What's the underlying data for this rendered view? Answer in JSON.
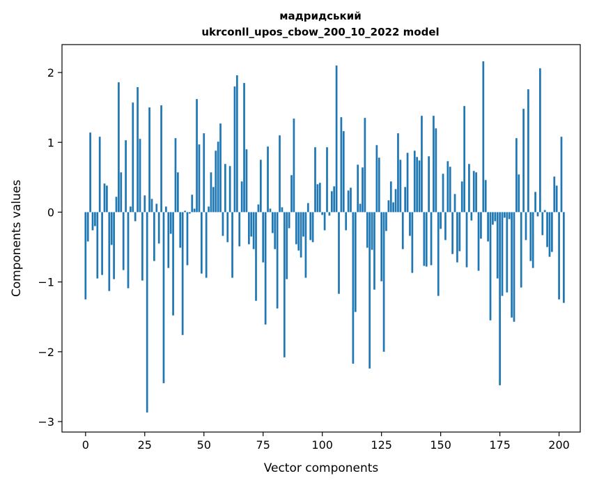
{
  "chart_data": {
    "type": "bar",
    "title": "мадридський",
    "subtitle": "ukrconll_upos_cbow_200_10_2022 model",
    "xlabel": "Vector components",
    "ylabel": "Components values",
    "xlim": [
      -9.95,
      208.95
    ],
    "ylim": [
      -3.15,
      2.4
    ],
    "xticks": [
      0,
      25,
      50,
      75,
      100,
      125,
      150,
      175,
      200
    ],
    "yticks": [
      -3,
      -2,
      -1,
      0,
      1,
      2
    ],
    "ytick_labels": [
      "−3",
      "−2",
      "−1",
      "0",
      "1",
      "2"
    ],
    "bar_color": "#1f77b4",
    "values": [
      -1.25,
      -0.42,
      1.14,
      -0.26,
      -0.2,
      -0.95,
      1.08,
      -0.9,
      0.41,
      0.38,
      -1.13,
      -0.47,
      -0.96,
      0.22,
      1.86,
      0.57,
      -0.83,
      1.03,
      -1.09,
      0.08,
      1.57,
      -0.13,
      1.79,
      1.05,
      -0.98,
      0.24,
      -2.87,
      1.5,
      0.19,
      -0.7,
      0.12,
      -0.45,
      1.53,
      -2.45,
      0.08,
      -0.8,
      -0.31,
      -1.48,
      1.06,
      0.57,
      -0.51,
      -1.76,
      0.02,
      -0.76,
      -0.02,
      0.25,
      0.05,
      1.62,
      0.97,
      -0.88,
      1.13,
      -0.94,
      0.08,
      0.57,
      0.36,
      0.88,
      1.01,
      1.27,
      -0.34,
      0.69,
      -0.43,
      0.66,
      -0.94,
      1.8,
      1.96,
      -0.49,
      0.44,
      1.85,
      0.9,
      -0.46,
      -0.35,
      -0.53,
      -1.27,
      0.11,
      0.75,
      -0.72,
      -1.61,
      0.94,
      0.05,
      -0.3,
      -0.53,
      -1.38,
      1.1,
      0.07,
      -2.08,
      -0.96,
      -0.23,
      0.53,
      1.34,
      -0.46,
      -0.55,
      -0.65,
      -0.35,
      -0.94,
      0.13,
      -0.4,
      -0.43,
      0.93,
      0.4,
      0.42,
      -0.04,
      -0.26,
      0.93,
      -0.05,
      0.3,
      0.37,
      2.1,
      -1.17,
      1.36,
      1.16,
      -0.26,
      0.31,
      0.35,
      -2.17,
      -1.43,
      0.68,
      0.12,
      0.64,
      1.35,
      -0.51,
      -2.24,
      -0.54,
      -1.11,
      0.96,
      0.78,
      -0.99,
      -2.0,
      -0.27,
      0.17,
      0.44,
      0.14,
      0.33,
      1.13,
      0.75,
      -0.53,
      0.36,
      0.85,
      -0.34,
      -0.87,
      0.88,
      0.79,
      0.74,
      1.38,
      -0.77,
      -0.78,
      0.8,
      -0.76,
      1.38,
      1.2,
      -1.2,
      -0.24,
      0.55,
      -0.4,
      0.73,
      0.65,
      -0.6,
      0.26,
      -0.72,
      -0.56,
      0.44,
      1.52,
      -0.79,
      0.69,
      -0.12,
      0.59,
      0.57,
      -0.84,
      -0.38,
      2.16,
      0.46,
      -0.42,
      -1.55,
      -0.18,
      -0.13,
      -0.95,
      -2.48,
      -1.2,
      -0.08,
      -1.15,
      -0.1,
      -1.51,
      -1.57,
      1.06,
      0.54,
      -1.08,
      1.48,
      -0.4,
      1.76,
      -0.7,
      -0.8,
      0.29,
      -0.06,
      2.06,
      -0.33,
      0.03,
      -0.5,
      -0.64,
      -0.57,
      0.51,
      0.38,
      -1.25,
      1.08,
      -1.3
    ]
  }
}
